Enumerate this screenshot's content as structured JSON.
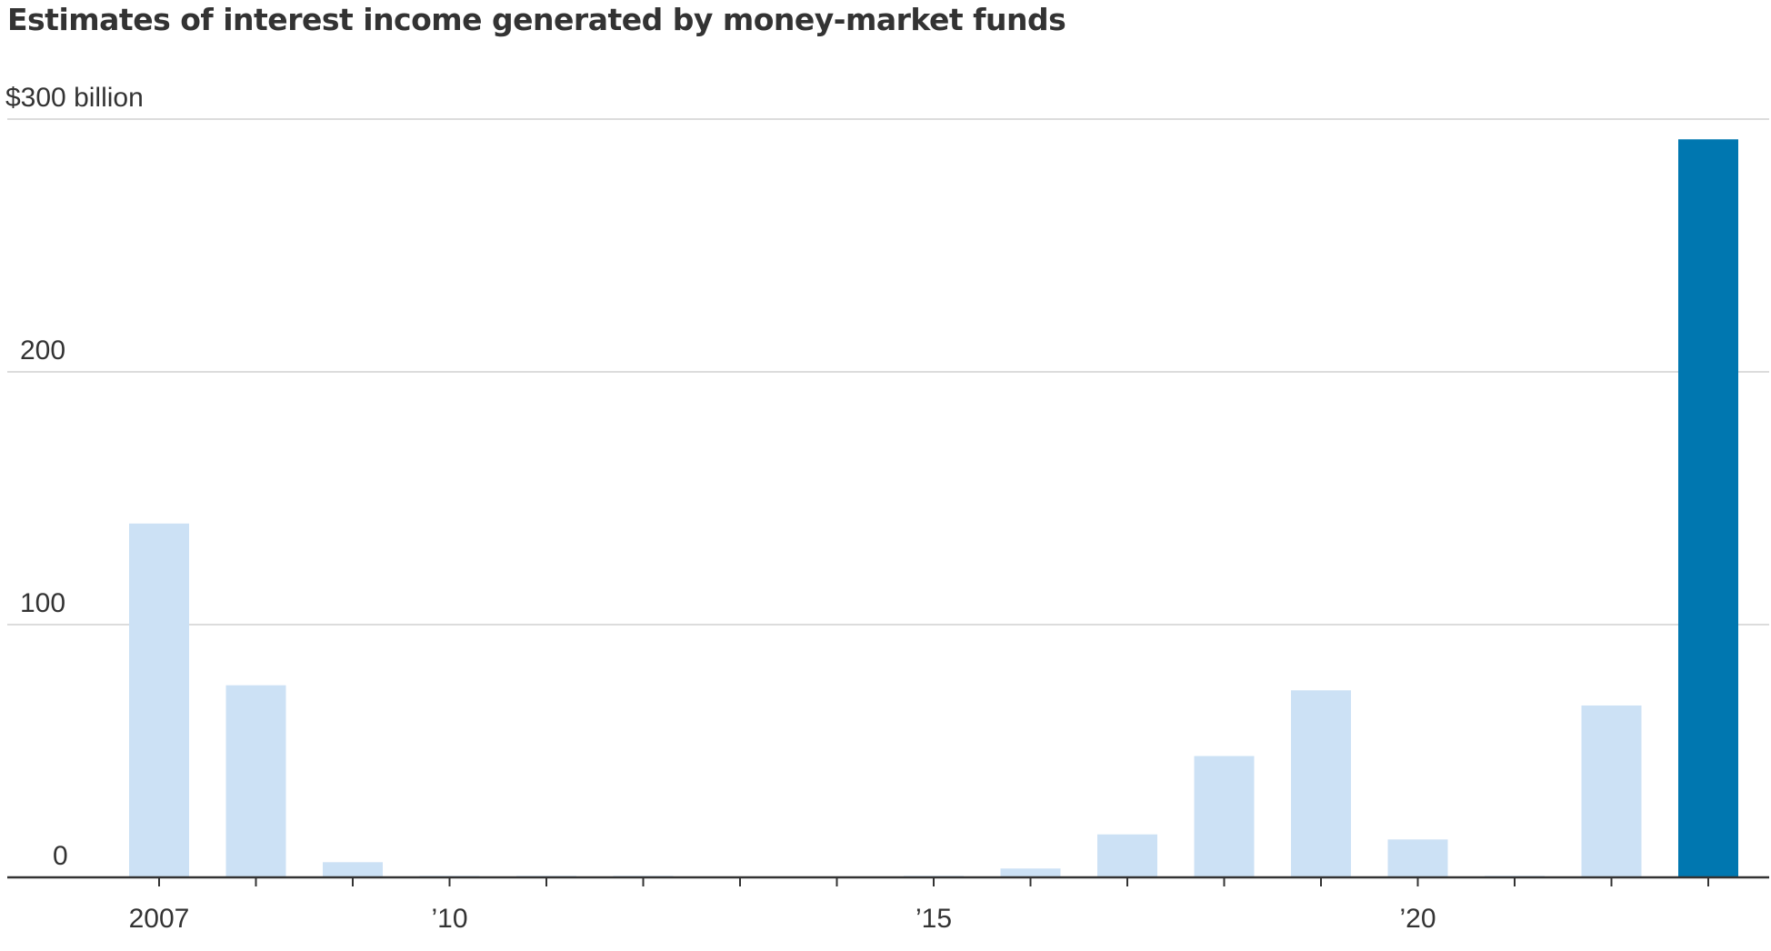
{
  "chart_data": {
    "type": "bar",
    "title": "Estimates of interest income generated by money-market funds",
    "xlabel": "",
    "ylabel": "",
    "unit": "$ billion",
    "categories": [
      "2007",
      "2008",
      "2009",
      "2010",
      "2011",
      "2012",
      "2013",
      "2014",
      "2015",
      "2016",
      "2017",
      "2018",
      "2019",
      "2020",
      "2021",
      "2022",
      "2023"
    ],
    "values": [
      140,
      76,
      6,
      0.6,
      0.6,
      0.6,
      0,
      0,
      0.6,
      3.5,
      17,
      48,
      74,
      15,
      0.6,
      68,
      292
    ],
    "highlight_index": 16,
    "colors": {
      "bar": "#cce1f5",
      "highlight": "#0077b0",
      "grid": "#dcdcdc",
      "axis": "#333333",
      "text": "#333333"
    },
    "ylim": [
      0,
      300
    ],
    "yticks": [
      {
        "value": 0,
        "label": "0"
      },
      {
        "value": 100,
        "label": "100"
      },
      {
        "value": 200,
        "label": "200"
      },
      {
        "value": 300,
        "label": "$300 billion"
      }
    ],
    "xticks": [
      {
        "category": "2007",
        "label": "2007"
      },
      {
        "category": "2010",
        "label": "’10"
      },
      {
        "category": "2015",
        "label": "’15"
      },
      {
        "category": "2020",
        "label": "’20"
      }
    ],
    "grid": true,
    "legend": "none"
  }
}
